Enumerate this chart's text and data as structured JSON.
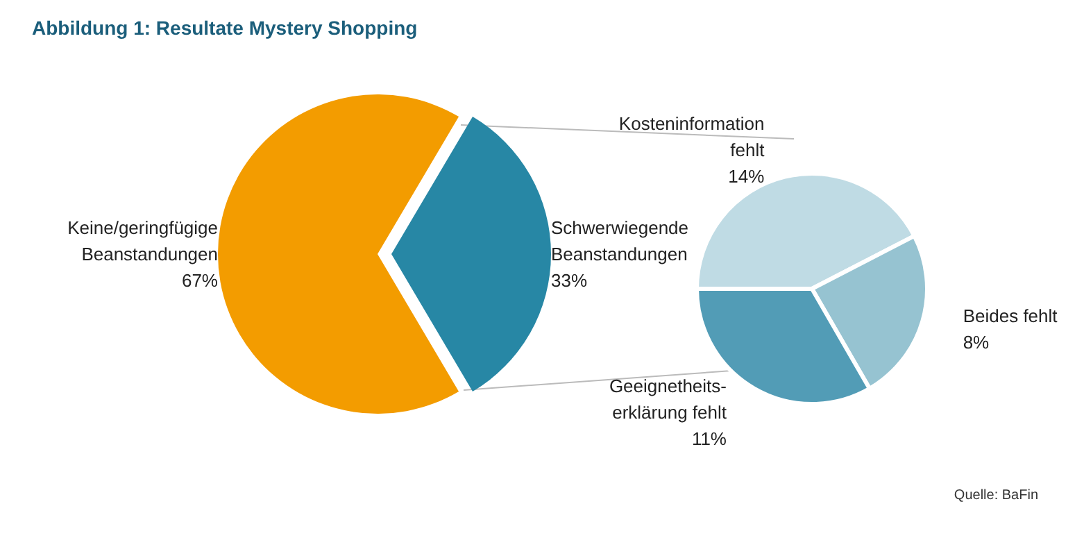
{
  "chart_data": [
    {
      "type": "pie",
      "title": "Abbildung 1: Resultate Mystery Shopping",
      "categories": [
        "Keine/geringfügige\nBeanstandungen",
        "Schwerwiegende\nBeanstandungen"
      ],
      "values": [
        67,
        33
      ],
      "value_labels": [
        "67%",
        "33%"
      ],
      "colors": [
        "#f39c00",
        "#2787a5"
      ]
    },
    {
      "type": "pie",
      "categories": [
        "Kosteninformation\nfehlt",
        "Beides fehlt",
        "Geeignetheits-\nerklärung fehlt"
      ],
      "values": [
        14,
        8,
        11
      ],
      "value_labels": [
        "14%",
        "8%",
        "11%"
      ],
      "colors": [
        "#bfdbe4",
        "#96c3d1",
        "#529cb6"
      ],
      "annotations": [
        "Quelle: BaFin"
      ]
    }
  ]
}
